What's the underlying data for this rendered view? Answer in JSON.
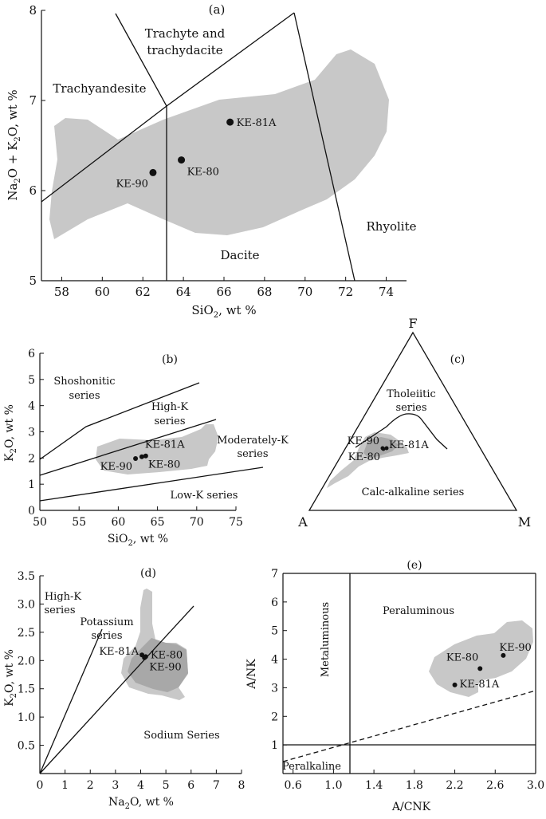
{
  "chart_data": [
    {
      "id": "a",
      "type": "scatter",
      "panel_label": "(a)",
      "xlabel": "SiO2, wt %",
      "ylabel": "Na2O + K2O, wt %",
      "xlim": [
        57,
        75
      ],
      "ylim": [
        5,
        8
      ],
      "xticks": [
        58,
        60,
        62,
        64,
        66,
        68,
        70,
        72,
        74
      ],
      "yticks": [
        5,
        6,
        7,
        8
      ],
      "points": [
        {
          "label": "KE-81A",
          "x": 66.3,
          "y": 6.76
        },
        {
          "label": "KE-80",
          "x": 63.9,
          "y": 6.34
        },
        {
          "label": "KE-90",
          "x": 62.5,
          "y": 6.2
        }
      ],
      "field_labels": [
        "Trachyte and",
        "trachydacite",
        "Trachyandesite",
        "Rhyolite",
        "Dacite"
      ]
    },
    {
      "id": "b",
      "type": "scatter",
      "panel_label": "(b)",
      "xlabel": "SiO2, wt %",
      "ylabel": "K2O, wt %",
      "xlim": [
        50,
        75
      ],
      "ylim": [
        0,
        6
      ],
      "xticks": [
        50,
        55,
        60,
        65,
        70,
        75
      ],
      "yticks": [
        0,
        1,
        2,
        3,
        4,
        5,
        6
      ],
      "points": [
        {
          "label": "KE-81A",
          "x": 63.5,
          "y": 2.08
        },
        {
          "label": "KE-80",
          "x": 63.0,
          "y": 2.05
        },
        {
          "label": "KE-90",
          "x": 62.2,
          "y": 1.98
        }
      ],
      "field_labels": [
        "Shoshonitic",
        "series",
        "High-K",
        "series",
        "Moderately-K",
        "series",
        "Low-K series"
      ]
    },
    {
      "id": "c",
      "type": "scatter",
      "panel_label": "(c)",
      "vertex_labels": [
        "F",
        "A",
        "M"
      ],
      "points": [
        {
          "label": "KE-90"
        },
        {
          "label": "KE-81A"
        },
        {
          "label": "KE-80"
        }
      ],
      "field_labels": [
        "Tholeiitic",
        "series",
        "Calc-alkaline series"
      ]
    },
    {
      "id": "d",
      "type": "scatter",
      "panel_label": "(d)",
      "xlabel": "Na2O, wt %",
      "ylabel": "K2O, wt %",
      "xlim": [
        0,
        8
      ],
      "ylim": [
        0,
        3.5
      ],
      "xticks": [
        0,
        1,
        2,
        3,
        4,
        5,
        6,
        7,
        8
      ],
      "yticks": [
        0.5,
        1.0,
        1.5,
        2.0,
        2.5,
        3.0,
        3.5
      ],
      "points": [
        {
          "label": "KE-81A",
          "x": 4.05,
          "y": 2.1
        },
        {
          "label": "KE-80",
          "x": 4.2,
          "y": 2.07
        },
        {
          "label": "KE-90",
          "x": 4.15,
          "y": 2.05
        }
      ],
      "field_labels": [
        "High-K",
        "series",
        "Potassium",
        "series",
        "Sodium Series"
      ]
    },
    {
      "id": "e",
      "type": "scatter",
      "panel_label": "(e)",
      "xlabel": "A/CNK",
      "ylabel": "A/NK",
      "xlim": [
        0.5,
        3.0
      ],
      "ylim": [
        0,
        7
      ],
      "xticks": [
        "0.6",
        "1.0",
        "1.4",
        "1.8",
        "2.2",
        "2.6",
        "3.0"
      ],
      "yticks": [
        1,
        2,
        3,
        4,
        5,
        6,
        7
      ],
      "points": [
        {
          "label": "KE-90",
          "x": 2.68,
          "y": 4.13
        },
        {
          "label": "KE-80",
          "x": 2.45,
          "y": 3.67
        },
        {
          "label": "KE-81A",
          "x": 2.2,
          "y": 3.1
        }
      ],
      "field_labels": [
        "Peraluminous",
        "Metaluminous",
        "Peralkaline"
      ]
    }
  ]
}
